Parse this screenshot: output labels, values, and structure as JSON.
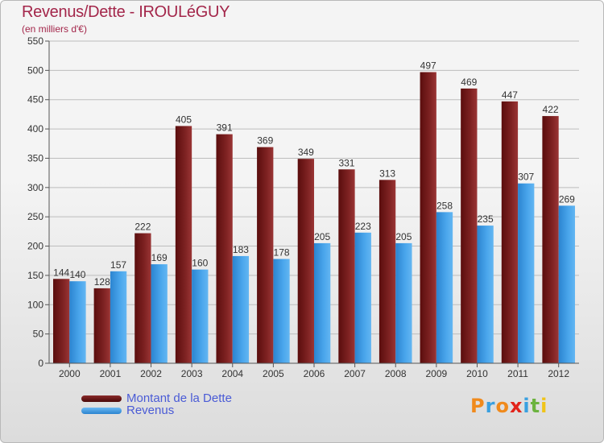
{
  "title": "Revenus/Dette - IROULéGUY",
  "subtitle": "(en milliers d'€)",
  "logo": "Proxiti",
  "legend": {
    "dette_label": "Montant de la Dette",
    "revenus_label": "Revenus"
  },
  "colors": {
    "dette": "#7a1a1a",
    "revenus": "#3d9be6",
    "title": "#a3264a",
    "legend_text": "#4a5bd6"
  },
  "chart_data": {
    "type": "bar",
    "title": "Revenus/Dette - IROULéGUY",
    "subtitle": "(en milliers d'€)",
    "categories": [
      "2000",
      "2001",
      "2002",
      "2003",
      "2004",
      "2005",
      "2006",
      "2007",
      "2008",
      "2009",
      "2010",
      "2011",
      "2012"
    ],
    "series": [
      {
        "name": "Montant de la Dette",
        "values": [
          144,
          128,
          222,
          405,
          391,
          369,
          349,
          331,
          313,
          497,
          469,
          447,
          422
        ]
      },
      {
        "name": "Revenus",
        "values": [
          140,
          157,
          169,
          160,
          183,
          178,
          205,
          223,
          205,
          258,
          235,
          307,
          269
        ]
      }
    ],
    "ylim": [
      0,
      550
    ],
    "yticks": [
      0,
      50,
      100,
      150,
      200,
      250,
      300,
      350,
      400,
      450,
      500,
      550
    ],
    "grid": true,
    "legend_position": "bottom-left"
  }
}
